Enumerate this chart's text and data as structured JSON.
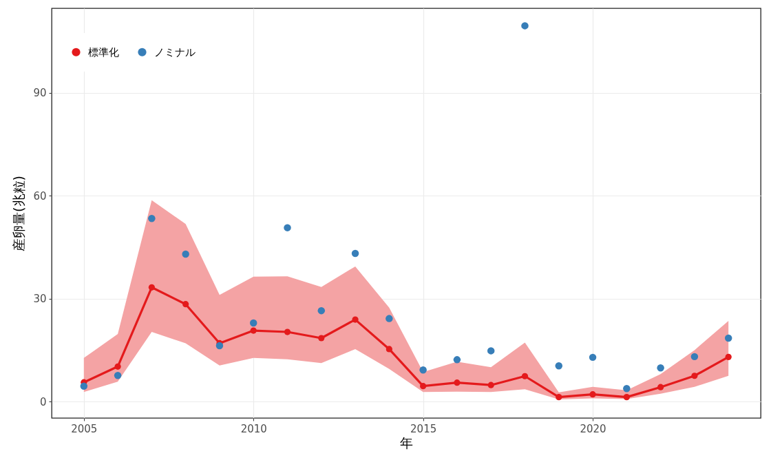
{
  "chart_data": {
    "type": "line",
    "xlabel": "年",
    "ylabel": "産卵量(兆粒)",
    "x": [
      2005,
      2006,
      2007,
      2008,
      2009,
      2010,
      2011,
      2012,
      2013,
      2014,
      2015,
      2016,
      2017,
      2018,
      2019,
      2020,
      2021,
      2022,
      2023,
      2024
    ],
    "xlim": [
      2004.05,
      2024.95
    ],
    "xticks": [
      2005,
      2010,
      2015,
      2020
    ],
    "ylim": [
      -4.8,
      114.7
    ],
    "yticks": [
      0,
      30,
      60,
      90
    ],
    "grid": true,
    "legend": "top left",
    "marker": "circle",
    "series": [
      {
        "name": "標準化",
        "type": "line",
        "color": "#e41a1c",
        "values": [
          5.6,
          10.2,
          33.3,
          28.4,
          17.0,
          20.7,
          20.3,
          18.5,
          23.9,
          15.3,
          4.5,
          5.5,
          4.8,
          7.4,
          1.3,
          2.1,
          1.3,
          4.2,
          7.5,
          13.0
        ],
        "lower": [
          2.8,
          5.8,
          20.3,
          17.0,
          10.5,
          12.7,
          12.3,
          11.2,
          15.3,
          9.5,
          2.8,
          2.9,
          2.8,
          3.6,
          0.6,
          0.9,
          0.7,
          2.3,
          4.3,
          7.5
        ],
        "upper": [
          12.7,
          19.7,
          58.7,
          51.8,
          31.1,
          36.4,
          36.5,
          33.4,
          39.4,
          27.4,
          8.6,
          11.6,
          10.0,
          17.2,
          2.7,
          4.3,
          3.3,
          8.0,
          15.0,
          23.5
        ]
      },
      {
        "name": "ノミナル",
        "type": "scatter",
        "color": "#377eb8",
        "values": [
          4.5,
          7.6,
          53.4,
          43.0,
          16.3,
          22.9,
          50.7,
          26.5,
          43.2,
          24.2,
          9.2,
          12.2,
          14.8,
          109.6,
          10.4,
          12.9,
          3.8,
          9.8,
          13.1,
          18.5
        ]
      }
    ]
  }
}
